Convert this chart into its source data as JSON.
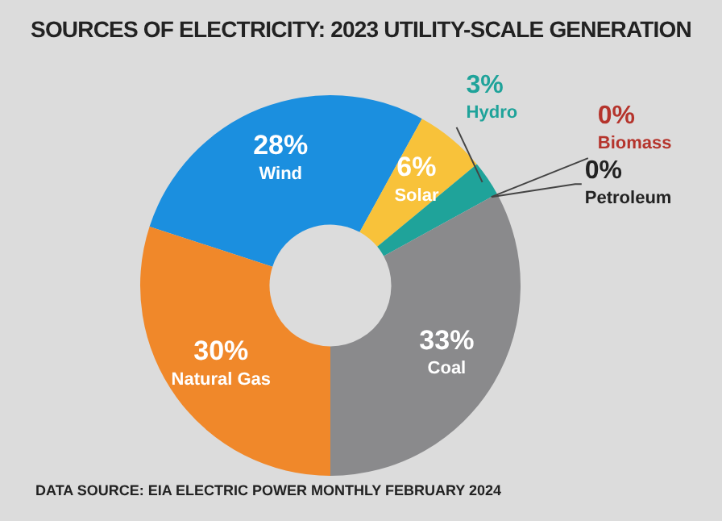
{
  "chart_data": {
    "type": "donut",
    "title": "SOURCES OF ELECTRICITY: 2023 UTILITY-SCALE GENERATION",
    "categories": [
      "Wind",
      "Solar",
      "Hydro",
      "Biomass",
      "Petroleum",
      "Coal",
      "Natural Gas"
    ],
    "values": [
      28,
      6,
      3,
      0,
      0,
      33,
      30
    ],
    "value_labels": [
      "28%",
      "6%",
      "3%",
      "0%",
      "0%",
      "33%",
      "30%"
    ],
    "colors": [
      "#1b8fdf",
      "#f8c23a",
      "#1fa39a",
      "#b5342c",
      "#222222",
      "#8a8a8c",
      "#f0882a"
    ],
    "legend": false,
    "annotations": [
      "DATA SOURCE: EIA ELECTRIC POWER MONTHLY FEBRUARY 2024"
    ]
  }
}
